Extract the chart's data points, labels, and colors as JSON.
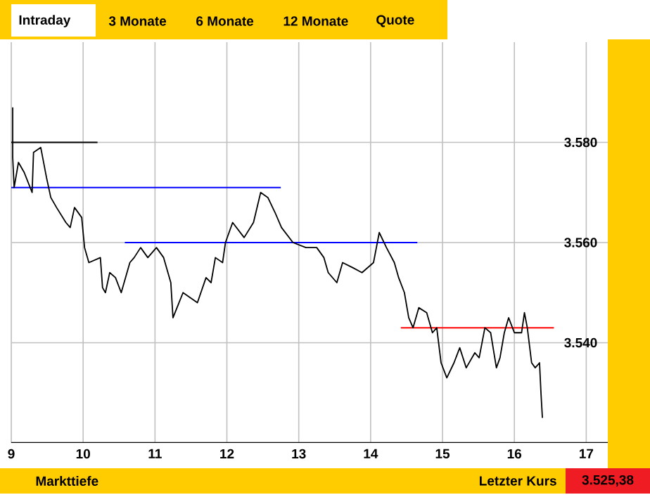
{
  "chart_data": {
    "type": "line",
    "xlim": [
      9,
      17.3
    ],
    "ylim": [
      3520,
      3600
    ],
    "xticks": [
      9,
      10,
      11,
      12,
      13,
      14,
      15,
      16,
      17
    ],
    "yticks": [
      {
        "value": 3540,
        "label": "3.540"
      },
      {
        "value": 3560,
        "label": "3.560"
      },
      {
        "value": 3580,
        "label": "3.580"
      }
    ],
    "grid": true,
    "line_style": "solid",
    "annotations": [
      "Intraday",
      "3 Monate",
      "6 Monate",
      "12 Monate",
      "Quote",
      "Markttiefe",
      "Letzter Kurs",
      "3.525,38"
    ],
    "series": [
      {
        "color": "#000000",
        "x": [
          9.02,
          9.02,
          9.04,
          9.1,
          9.18,
          9.29,
          9.31,
          9.41,
          9.49,
          9.55,
          9.63,
          9.76,
          9.82,
          9.88,
          9.98,
          10.02,
          10.08,
          10.24,
          10.27,
          10.31,
          10.37,
          10.45,
          10.53,
          10.65,
          10.71,
          10.8,
          10.9,
          11.02,
          11.12,
          11.22,
          11.25,
          11.39,
          11.59,
          11.71,
          11.78,
          11.84,
          11.94,
          11.98,
          12.08,
          12.24,
          12.37,
          12.47,
          12.57,
          12.67,
          12.76,
          12.92,
          13.1,
          13.25,
          13.35,
          13.41,
          13.53,
          13.61,
          13.75,
          13.88,
          14.04,
          14.12,
          14.22,
          14.33,
          14.39,
          14.47,
          14.53,
          14.59,
          14.67,
          14.78,
          14.86,
          14.92,
          14.98,
          15.06,
          15.16,
          15.24,
          15.33,
          15.45,
          15.51,
          15.59,
          15.67,
          15.75,
          15.8,
          15.86,
          15.92,
          16.0,
          16.1,
          16.14,
          16.18,
          16.24,
          16.29,
          16.35,
          16.37,
          16.39
        ],
        "values": [
          3587,
          3577,
          3571,
          3576,
          3574,
          3570,
          3578,
          3579,
          3573,
          3569,
          3567,
          3564,
          3563,
          3567,
          3565,
          3559,
          3556,
          3557,
          3551,
          3550,
          3554,
          3553,
          3550,
          3556,
          3557,
          3559,
          3557,
          3559,
          3557,
          3552,
          3545,
          3550,
          3548,
          3553,
          3552,
          3557,
          3556,
          3560,
          3564,
          3561,
          3564,
          3570,
          3569,
          3566,
          3563,
          3560,
          3559,
          3559,
          3557,
          3554,
          3552,
          3556,
          3555,
          3554,
          3556,
          3562,
          3559,
          3556,
          3553,
          3550,
          3545,
          3543,
          3547,
          3546,
          3542,
          3543,
          3536,
          3533,
          3536,
          3539,
          3535,
          3538,
          3537,
          3543,
          3542,
          3535,
          3537,
          3542,
          3545,
          3542,
          3542,
          3546,
          3543,
          3536,
          3535,
          3536,
          3530,
          3525
        ]
      },
      {
        "type": "line",
        "color": "#000000",
        "x": [
          9.0,
          10.2
        ],
        "values": [
          3580,
          3580
        ]
      },
      {
        "type": "line",
        "color": "#0000ff",
        "x": [
          9.0,
          12.75
        ],
        "values": [
          3571,
          3571
        ]
      },
      {
        "type": "line",
        "color": "#0000ff",
        "x": [
          10.58,
          14.65
        ],
        "values": [
          3560,
          3560
        ]
      },
      {
        "type": "line",
        "color": "#ff0000",
        "x": [
          14.42,
          16.55
        ],
        "values": [
          3543,
          3543
        ]
      }
    ]
  }
}
